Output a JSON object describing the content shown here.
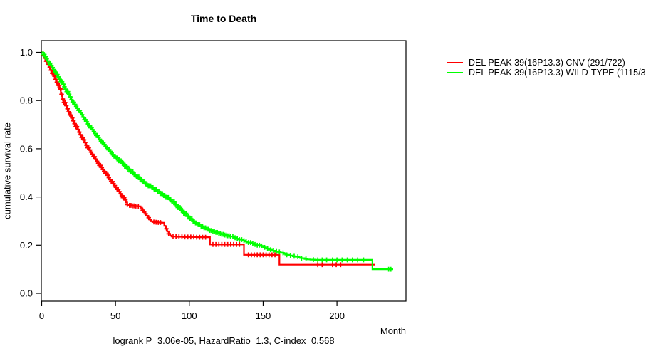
{
  "chart_data": {
    "type": "line",
    "subtype": "kaplan-meier-step-curves",
    "title": "Time to Death",
    "xlabel": "Month",
    "ylabel": "cumulative survival rate",
    "annotation": "logrank P=3.06e-05, HazardRatio=1.3, C-index=0.568",
    "xlim": [
      0,
      247
    ],
    "ylim": [
      0,
      1.0
    ],
    "xticks": [
      0,
      50,
      100,
      150,
      200
    ],
    "yticks": [
      0.0,
      0.2,
      0.4,
      0.6,
      0.8,
      1.0
    ],
    "ytick_labels": [
      "0.0",
      "0.2",
      "0.4",
      "0.6",
      "0.8",
      "1.0"
    ],
    "grid": false,
    "legend_position": "right-outside-top",
    "axis_color": "#000000",
    "background_color": "#FFFFFF",
    "series": [
      {
        "name": "DEL PEAK 39(16P13.3) CNV (291/722)",
        "color": "#FF0000",
        "points": [
          [
            0,
            1.0
          ],
          [
            1,
            0.988
          ],
          [
            2,
            0.976
          ],
          [
            3,
            0.963
          ],
          [
            4,
            0.951
          ],
          [
            5,
            0.938
          ],
          [
            6,
            0.926
          ],
          [
            7,
            0.913
          ],
          [
            8,
            0.901
          ],
          [
            9,
            0.888
          ],
          [
            10,
            0.876
          ],
          [
            11,
            0.863
          ],
          [
            12,
            0.848
          ],
          [
            13,
            0.826
          ],
          [
            14,
            0.806
          ],
          [
            15,
            0.792
          ],
          [
            16,
            0.779
          ],
          [
            17,
            0.766
          ],
          [
            18,
            0.753
          ],
          [
            19,
            0.74
          ],
          [
            20,
            0.728
          ],
          [
            21,
            0.716
          ],
          [
            22,
            0.704
          ],
          [
            23,
            0.692
          ],
          [
            24,
            0.68
          ],
          [
            25,
            0.669
          ],
          [
            26,
            0.658
          ],
          [
            27,
            0.647
          ],
          [
            28,
            0.637
          ],
          [
            29,
            0.626
          ],
          [
            30,
            0.615
          ],
          [
            31,
            0.604
          ],
          [
            32,
            0.595
          ],
          [
            33,
            0.586
          ],
          [
            34,
            0.577
          ],
          [
            35,
            0.567
          ],
          [
            36,
            0.557
          ],
          [
            37,
            0.548
          ],
          [
            38,
            0.54
          ],
          [
            39,
            0.531
          ],
          [
            40,
            0.522
          ],
          [
            41,
            0.514
          ],
          [
            42,
            0.506
          ],
          [
            43,
            0.498
          ],
          [
            44,
            0.49
          ],
          [
            45,
            0.48
          ],
          [
            46,
            0.472
          ],
          [
            47,
            0.464
          ],
          [
            48,
            0.455
          ],
          [
            49,
            0.447
          ],
          [
            50,
            0.44
          ],
          [
            51,
            0.431
          ],
          [
            52,
            0.422
          ],
          [
            53,
            0.413
          ],
          [
            54,
            0.405
          ],
          [
            55,
            0.397
          ],
          [
            56,
            0.388
          ],
          [
            57,
            0.377
          ],
          [
            58,
            0.368
          ],
          [
            59,
            0.365
          ],
          [
            61,
            0.363
          ],
          [
            63,
            0.362
          ],
          [
            65,
            0.361
          ],
          [
            67,
            0.355
          ],
          [
            68,
            0.345
          ],
          [
            69,
            0.337
          ],
          [
            70,
            0.33
          ],
          [
            71,
            0.322
          ],
          [
            72,
            0.314
          ],
          [
            73,
            0.306
          ],
          [
            74,
            0.299
          ],
          [
            75,
            0.296
          ],
          [
            77,
            0.295
          ],
          [
            79,
            0.294
          ],
          [
            81,
            0.293
          ],
          [
            83,
            0.28
          ],
          [
            84,
            0.268
          ],
          [
            85,
            0.257
          ],
          [
            86,
            0.247
          ],
          [
            87,
            0.24
          ],
          [
            88,
            0.236
          ],
          [
            92,
            0.235
          ],
          [
            96,
            0.234
          ],
          [
            100,
            0.234
          ],
          [
            105,
            0.233
          ],
          [
            110,
            0.233
          ],
          [
            113,
            0.233
          ],
          [
            114,
            0.203
          ],
          [
            118,
            0.203
          ],
          [
            124,
            0.203
          ],
          [
            130,
            0.203
          ],
          [
            136,
            0.203
          ],
          [
            137,
            0.16
          ],
          [
            144,
            0.16
          ],
          [
            152,
            0.16
          ],
          [
            160,
            0.16
          ],
          [
            161,
            0.119
          ],
          [
            170,
            0.119
          ],
          [
            180,
            0.119
          ],
          [
            190,
            0.119
          ],
          [
            200,
            0.119
          ],
          [
            210,
            0.119
          ],
          [
            220,
            0.119
          ],
          [
            226,
            0.119
          ]
        ],
        "censor_months": [
          1.5,
          2.3,
          3.1,
          3.9,
          4.7,
          5.5,
          6.3,
          7.1,
          7.9,
          8.7,
          9.5,
          10.3,
          11.1,
          11.9,
          12.7,
          13.5,
          14.3,
          15.1,
          15.9,
          16.7,
          17.5,
          18.3,
          19.1,
          19.9,
          20.7,
          21.5,
          22.3,
          23.1,
          23.9,
          24.7,
          25.5,
          26.3,
          27.1,
          27.9,
          28.7,
          29.5,
          30.3,
          31.1,
          31.9,
          32.7,
          33.5,
          34.3,
          35.1,
          35.9,
          36.7,
          37.5,
          38.3,
          39.1,
          39.9,
          40.7,
          41.5,
          42.3,
          43.1,
          43.9,
          44.7,
          45.5,
          46.3,
          47.1,
          47.9,
          48.7,
          49.5,
          50.3,
          51.1,
          51.9,
          52.7,
          53.5,
          54.3,
          55.1,
          55.9,
          56.7,
          58,
          59.5,
          60.5,
          61.5,
          62.5,
          63.5,
          64.5,
          65.5,
          68.5,
          70.5,
          72.5,
          76,
          77.5,
          79,
          80.5,
          84.5,
          86,
          89,
          91,
          93,
          95,
          97,
          99,
          101,
          103,
          105,
          107,
          109,
          111,
          116,
          118,
          120,
          122,
          124,
          126,
          128,
          130,
          132,
          134,
          140,
          142,
          144,
          146,
          148,
          150,
          152,
          154,
          156,
          158,
          187,
          190,
          197,
          199.5,
          202.5
        ]
      },
      {
        "name": "DEL PEAK 39(16P13.3) WILD-TYPE (1115/3",
        "color": "#00FF00",
        "points": [
          [
            0,
            1.0
          ],
          [
            1,
            0.991
          ],
          [
            2,
            0.982
          ],
          [
            3,
            0.973
          ],
          [
            4,
            0.964
          ],
          [
            5,
            0.955
          ],
          [
            6,
            0.946
          ],
          [
            7,
            0.937
          ],
          [
            8,
            0.928
          ],
          [
            9,
            0.918
          ],
          [
            10,
            0.908
          ],
          [
            11,
            0.898
          ],
          [
            12,
            0.888
          ],
          [
            13,
            0.878
          ],
          [
            14,
            0.868
          ],
          [
            15,
            0.857
          ],
          [
            16,
            0.847
          ],
          [
            17,
            0.837
          ],
          [
            18,
            0.826
          ],
          [
            19,
            0.815
          ],
          [
            20,
            0.803
          ],
          [
            21,
            0.793
          ],
          [
            22,
            0.784
          ],
          [
            23,
            0.776
          ],
          [
            24,
            0.768
          ],
          [
            25,
            0.759
          ],
          [
            26,
            0.75
          ],
          [
            27,
            0.741
          ],
          [
            28,
            0.731
          ],
          [
            29,
            0.721
          ],
          [
            30,
            0.712
          ],
          [
            31,
            0.703
          ],
          [
            32,
            0.695
          ],
          [
            33,
            0.687
          ],
          [
            34,
            0.679
          ],
          [
            35,
            0.671
          ],
          [
            36,
            0.663
          ],
          [
            37,
            0.655
          ],
          [
            38,
            0.647
          ],
          [
            39,
            0.639
          ],
          [
            40,
            0.632
          ],
          [
            41,
            0.624
          ],
          [
            42,
            0.617
          ],
          [
            43,
            0.61
          ],
          [
            44,
            0.603
          ],
          [
            45,
            0.596
          ],
          [
            46,
            0.589
          ],
          [
            47,
            0.582
          ],
          [
            48,
            0.575
          ],
          [
            49,
            0.569
          ],
          [
            50,
            0.562
          ],
          [
            52,
            0.55
          ],
          [
            54,
            0.539
          ],
          [
            56,
            0.527
          ],
          [
            58,
            0.515
          ],
          [
            60,
            0.504
          ],
          [
            62,
            0.493
          ],
          [
            64,
            0.483
          ],
          [
            66,
            0.473
          ],
          [
            68,
            0.463
          ],
          [
            70,
            0.454
          ],
          [
            72,
            0.446
          ],
          [
            74,
            0.439
          ],
          [
            76,
            0.431
          ],
          [
            78,
            0.423
          ],
          [
            80,
            0.414
          ],
          [
            82,
            0.406
          ],
          [
            84,
            0.398
          ],
          [
            86,
            0.39
          ],
          [
            88,
            0.38
          ],
          [
            90,
            0.368
          ],
          [
            92,
            0.356
          ],
          [
            94,
            0.344
          ],
          [
            96,
            0.332
          ],
          [
            98,
            0.32
          ],
          [
            100,
            0.309
          ],
          [
            102,
            0.299
          ],
          [
            104,
            0.292
          ],
          [
            106,
            0.285
          ],
          [
            108,
            0.278
          ],
          [
            110,
            0.272
          ],
          [
            112,
            0.266
          ],
          [
            114,
            0.261
          ],
          [
            116,
            0.257
          ],
          [
            118,
            0.253
          ],
          [
            120,
            0.249
          ],
          [
            122,
            0.245
          ],
          [
            124,
            0.242
          ],
          [
            126,
            0.239
          ],
          [
            128,
            0.236
          ],
          [
            130,
            0.231
          ],
          [
            132,
            0.227
          ],
          [
            134,
            0.223
          ],
          [
            136,
            0.219
          ],
          [
            138,
            0.215
          ],
          [
            140,
            0.211
          ],
          [
            142,
            0.207
          ],
          [
            144,
            0.203
          ],
          [
            146,
            0.2
          ],
          [
            148,
            0.197
          ],
          [
            150,
            0.191
          ],
          [
            152,
            0.186
          ],
          [
            154,
            0.181
          ],
          [
            156,
            0.177
          ],
          [
            158,
            0.174
          ],
          [
            160,
            0.172
          ],
          [
            162,
            0.168
          ],
          [
            164,
            0.164
          ],
          [
            166,
            0.16
          ],
          [
            168,
            0.157
          ],
          [
            170,
            0.154
          ],
          [
            172,
            0.152
          ],
          [
            174,
            0.149
          ],
          [
            176,
            0.146
          ],
          [
            178,
            0.143
          ],
          [
            180,
            0.141
          ],
          [
            182,
            0.14
          ],
          [
            185,
            0.139
          ],
          [
            190,
            0.139
          ],
          [
            200,
            0.139
          ],
          [
            210,
            0.139
          ],
          [
            220,
            0.139
          ],
          [
            223,
            0.139
          ],
          [
            224,
            0.1
          ],
          [
            230,
            0.1
          ],
          [
            238,
            0.1
          ]
        ],
        "censor_months": [
          1,
          1.8,
          2.6,
          3.4,
          4.2,
          5,
          5.8,
          6.6,
          7.4,
          8.2,
          9,
          9.8,
          10.6,
          11.4,
          12.2,
          13,
          13.8,
          14.6,
          15.4,
          16.2,
          17,
          17.8,
          18.6,
          19.4,
          20.2,
          21,
          21.8,
          22.6,
          23.4,
          24.2,
          25,
          25.8,
          26.6,
          27.4,
          28.2,
          29,
          29.8,
          30.6,
          31.4,
          32.2,
          33,
          33.8,
          34.6,
          35.4,
          36.2,
          37,
          37.8,
          38.6,
          39.4,
          40.2,
          41,
          41.8,
          42.6,
          43.4,
          44.2,
          45,
          45.8,
          46.6,
          47.4,
          48.2,
          49,
          49.8,
          50.6,
          51.4,
          52.2,
          53,
          53.8,
          54.6,
          55.4,
          56.2,
          57,
          57.8,
          58.6,
          59.4,
          60.2,
          61,
          61.8,
          62.6,
          63.4,
          64.2,
          65,
          65.8,
          66.6,
          67.4,
          68.2,
          69,
          69.8,
          70.6,
          71.4,
          72.2,
          73,
          73.8,
          74.6,
          75.4,
          76.2,
          77,
          77.8,
          78.6,
          79.4,
          80.2,
          81,
          81.8,
          82.6,
          83.4,
          84.2,
          85,
          85.8,
          86.6,
          87.4,
          88.2,
          89,
          89.8,
          90.6,
          91.4,
          92.2,
          93,
          93.8,
          94.6,
          95.4,
          96.2,
          97,
          97.8,
          98.6,
          99.4,
          100.2,
          101,
          101.8,
          102.6,
          103.4,
          104.2,
          105,
          106,
          107,
          108,
          109,
          110,
          111,
          112,
          113,
          114,
          115,
          116,
          117,
          118,
          119,
          120,
          121,
          122,
          123,
          124,
          125,
          126,
          127,
          128,
          129.5,
          131,
          132.5,
          134,
          135.5,
          137,
          138.5,
          140,
          141.5,
          143,
          144.5,
          146,
          147.5,
          149,
          151,
          153,
          155,
          157,
          159,
          161,
          163.5,
          166,
          168.5,
          171,
          173.5,
          176,
          179,
          184,
          187,
          190,
          193,
          197,
          200,
          203.5,
          207,
          210.5,
          214,
          218,
          235,
          236.5
        ]
      }
    ]
  }
}
